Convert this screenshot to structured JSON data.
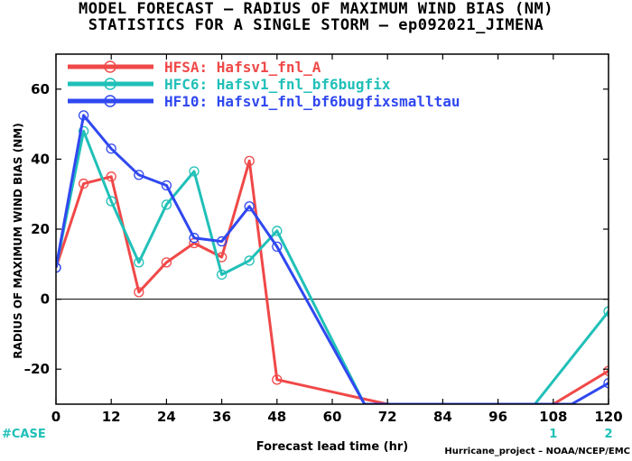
{
  "header": {
    "title1": "MODEL FORECAST – RADIUS OF MAXIMUM WIND BIAS (NM)",
    "title2": "STATISTICS FOR A SINGLE STORM – ep092021_JIMENA"
  },
  "footer": {
    "case_label": "#CASE",
    "credit": "Hurricane_project – NOAA/NCEP/EMC",
    "case_counts": [
      {
        "x": 108,
        "value": "1"
      },
      {
        "x": 120,
        "value": "2"
      }
    ]
  },
  "chart_data": {
    "type": "line",
    "title": "MODEL FORECAST – RADIUS OF MAXIMUM WIND BIAS (NM)",
    "subtitle": "STATISTICS FOR A SINGLE STORM – ep092021_JIMENA",
    "xlabel": "Forecast lead time (hr)",
    "ylabel": "RADIUS OF MAXIMUM WIND BIAS (NM)",
    "xlim": [
      0,
      120
    ],
    "ylim": [
      -30,
      70
    ],
    "xticks": [
      0,
      12,
      24,
      36,
      48,
      60,
      72,
      84,
      96,
      108,
      120
    ],
    "yticks": [
      -20,
      0,
      20,
      40,
      60
    ],
    "zero_line": true,
    "legend_position": "top-left",
    "series": [
      {
        "name": "HFSA: Hafsv1_fnl_A",
        "color": "#f04848",
        "points": [
          [
            0,
            9
          ],
          [
            6,
            33
          ],
          [
            12,
            35
          ],
          [
            18,
            2
          ],
          [
            24,
            10.5
          ],
          [
            30,
            16
          ],
          [
            36,
            12
          ],
          [
            42,
            39.5
          ],
          [
            48,
            -23
          ],
          [
            72,
            -30
          ],
          [
            108,
            -30
          ],
          [
            120,
            -20.5
          ]
        ]
      },
      {
        "name": "HFC6: Hafsv1_fnl_bf6bugfix",
        "color": "#20c0b8",
        "points": [
          [
            0,
            9
          ],
          [
            6,
            48
          ],
          [
            12,
            28
          ],
          [
            18,
            10.5
          ],
          [
            24,
            27
          ],
          [
            30,
            36.5
          ],
          [
            36,
            7
          ],
          [
            42,
            11
          ],
          [
            48,
            19.5
          ],
          [
            67,
            -30
          ],
          [
            104,
            -30
          ],
          [
            120,
            -3.5
          ]
        ]
      },
      {
        "name": "HF10: Hafsv1_fnl_bf6bugfixsmalltau",
        "color": "#3048f0",
        "points": [
          [
            0,
            9
          ],
          [
            6,
            52.5
          ],
          [
            12,
            43
          ],
          [
            18,
            35.5
          ],
          [
            24,
            32.5
          ],
          [
            30,
            17.5
          ],
          [
            36,
            16.5
          ],
          [
            42,
            26.5
          ],
          [
            48,
            15
          ],
          [
            67,
            -30
          ],
          [
            112,
            -30
          ],
          [
            120,
            -24
          ]
        ]
      }
    ]
  }
}
